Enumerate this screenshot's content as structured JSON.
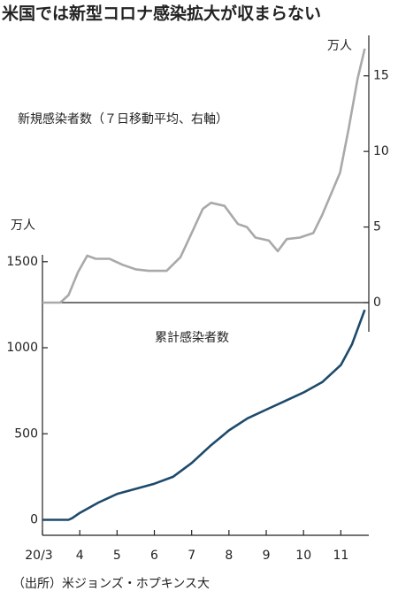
{
  "chart_data": {
    "type": "line",
    "title": "米国では新型コロナ感染拡大が収まらない",
    "annotations": [
      "新規感染者数（７日移動平均、右軸）",
      "累計感染者数"
    ],
    "y2_unit": "万人",
    "y_unit": "万人",
    "source": "（出所）米ジョンズ・ホプキンス大",
    "xlim": [
      3,
      11.75
    ],
    "xticks": [
      {
        "value": 3,
        "label": "20/3"
      },
      4,
      5,
      6,
      7,
      8,
      9,
      10,
      11
    ],
    "ylim": [
      -90,
      1540
    ],
    "yticks": [
      0,
      500,
      1000,
      1500
    ],
    "y2lim": [
      0,
      17.5
    ],
    "y2ticks": [
      0,
      5,
      10,
      15
    ],
    "series": [
      {
        "name": "新規感染者数",
        "color": "#a9a9a9",
        "axis": "y2",
        "x": [
          3.0,
          3.48,
          3.7,
          3.95,
          4.2,
          4.43,
          4.8,
          5.15,
          5.5,
          5.85,
          6.33,
          6.7,
          7.0,
          7.3,
          7.52,
          7.88,
          8.24,
          8.48,
          8.71,
          9.07,
          9.31,
          9.55,
          9.9,
          10.26,
          10.5,
          10.74,
          10.98,
          11.21,
          11.45,
          11.64
        ],
        "values": [
          0,
          0,
          0.5,
          2,
          3.1,
          2.9,
          2.9,
          2.5,
          2.2,
          2.1,
          2.1,
          3.0,
          4.6,
          6.2,
          6.6,
          6.4,
          5.2,
          5.0,
          4.3,
          4.1,
          3.4,
          4.2,
          4.3,
          4.6,
          5.8,
          7.2,
          8.6,
          11.5,
          14.8,
          16.8
        ]
      },
      {
        "name": "累計感染者数",
        "color": "#1d4a6b",
        "x": [
          3.0,
          3.7,
          3.8,
          4.0,
          4.5,
          5.0,
          5.5,
          6.0,
          6.5,
          7.0,
          7.5,
          8.0,
          8.5,
          9.0,
          9.5,
          10.0,
          10.5,
          11.0,
          11.3,
          11.64
        ],
        "values": [
          0,
          0,
          10,
          40,
          100,
          150,
          180,
          210,
          250,
          330,
          430,
          520,
          590,
          640,
          690,
          740,
          800,
          900,
          1020,
          1220
        ]
      }
    ]
  }
}
